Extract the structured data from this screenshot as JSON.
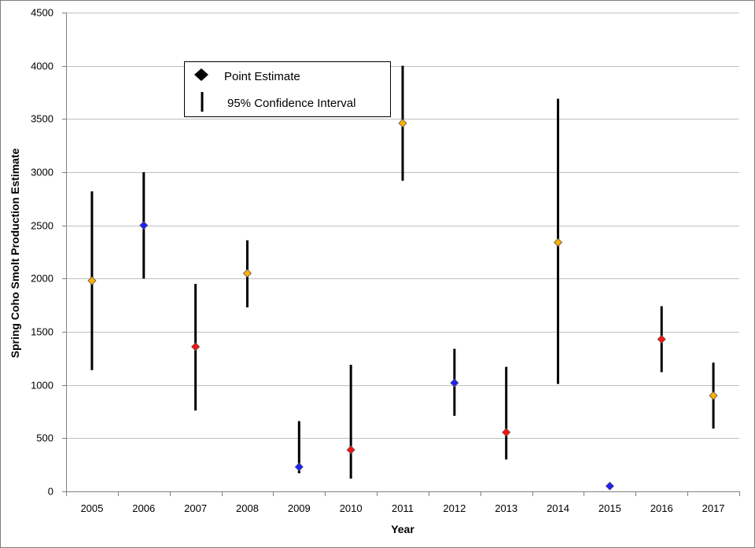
{
  "chart_data": {
    "type": "scatter",
    "xlabel": "Year",
    "ylabel": "Spring Coho Smolt Production Estimate",
    "ylim": [
      0,
      4500
    ],
    "yticks": [
      0,
      500,
      1000,
      1500,
      2000,
      2500,
      3000,
      3500,
      4000,
      4500
    ],
    "grid": true,
    "legend_position": "top-left",
    "legend": {
      "point_label": "Point Estimate",
      "ci_label": "95% Confidence Interval"
    },
    "points": [
      {
        "year": "2005",
        "estimate": 1980,
        "ci_low": 1140,
        "ci_high": 2820,
        "color": "#ffb000"
      },
      {
        "year": "2006",
        "estimate": 2500,
        "ci_low": 2000,
        "ci_high": 3000,
        "color": "#1f1fff"
      },
      {
        "year": "2007",
        "estimate": 1360,
        "ci_low": 760,
        "ci_high": 1950,
        "color": "#ff1010"
      },
      {
        "year": "2008",
        "estimate": 2050,
        "ci_low": 1730,
        "ci_high": 2360,
        "color": "#ffb000"
      },
      {
        "year": "2009",
        "estimate": 230,
        "ci_low": 170,
        "ci_high": 660,
        "color": "#1f1fff"
      },
      {
        "year": "2010",
        "estimate": 390,
        "ci_low": 120,
        "ci_high": 1190,
        "color": "#ff1010"
      },
      {
        "year": "2011",
        "estimate": 3460,
        "ci_low": 2920,
        "ci_high": 4000,
        "color": "#ffb000"
      },
      {
        "year": "2012",
        "estimate": 1020,
        "ci_low": 710,
        "ci_high": 1340,
        "color": "#1f1fff"
      },
      {
        "year": "2013",
        "estimate": 555,
        "ci_low": 300,
        "ci_high": 1170,
        "color": "#ff1010"
      },
      {
        "year": "2014",
        "estimate": 2340,
        "ci_low": 1010,
        "ci_high": 3690,
        "color": "#ffb000"
      },
      {
        "year": "2015",
        "estimate": 50,
        "ci_low": null,
        "ci_high": null,
        "color": "#1f1fff"
      },
      {
        "year": "2016",
        "estimate": 1430,
        "ci_low": 1120,
        "ci_high": 1740,
        "color": "#ff1010"
      },
      {
        "year": "2017",
        "estimate": 900,
        "ci_low": 590,
        "ci_high": 1210,
        "color": "#ffb000"
      }
    ]
  }
}
